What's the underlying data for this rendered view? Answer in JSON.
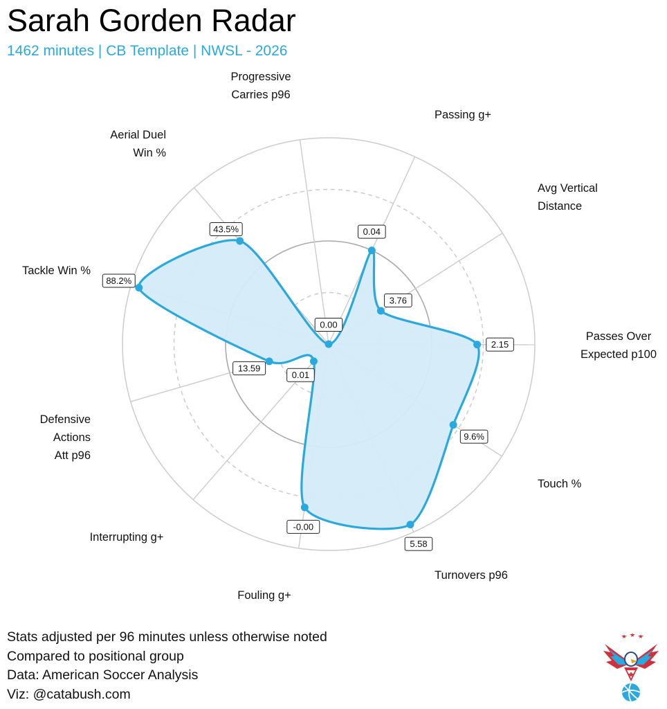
{
  "header": {
    "title": "Sarah Gorden Radar",
    "subtitle": "1462 minutes | CB Template | NWSL - 2026"
  },
  "colors": {
    "accent": "#2aa9df",
    "fill": "#d4ebf8",
    "grid": "#cccccc",
    "ring_mid": "#aaaaaa"
  },
  "chart_data": {
    "type": "radar",
    "categories": [
      "Progressive Carries p96",
      "Passing g+",
      "Avg Vertical Distance",
      "Passes Over Expected p100",
      "Touch %",
      "Turnovers p96",
      "Fouling g+",
      "Interrupting g+",
      "Defensive Actions Att p96",
      "Tackle Win %",
      "Aerial Duel Win %"
    ],
    "label_lines": [
      [
        "Progressive",
        "Carries p96"
      ],
      [
        "Passing g+"
      ],
      [
        "Avg Vertical",
        "Distance"
      ],
      [
        "Passes Over",
        "Expected p100"
      ],
      [
        "Touch %"
      ],
      [
        "Turnovers p96"
      ],
      [
        "Fouling g+"
      ],
      [
        "Interrupting g+"
      ],
      [
        "Defensive",
        "Actions",
        "Att p96"
      ],
      [
        "Tackle Win %"
      ],
      [
        "Aerial Duel",
        "Win %"
      ]
    ],
    "value_labels": [
      "0.00",
      "0.04",
      "3.76",
      "2.15",
      "9.6%",
      "5.58",
      "-0.00",
      "0.01",
      "13.59",
      "88.2%",
      "43.5%"
    ],
    "percentiles": [
      0,
      50,
      30,
      72,
      72,
      96,
      80,
      11,
      30,
      96,
      66
    ],
    "rings": [
      25,
      50,
      75,
      100
    ],
    "rlim": [
      0,
      100
    ],
    "grid": true
  },
  "footer": {
    "lines": [
      "Stats adjusted per 96 minutes unless otherwise noted",
      "Compared to positional group",
      "Data: American Soccer Analysis",
      "Viz: @catabush.com"
    ]
  },
  "logo": {
    "icon": "eagle-soccer-logo-icon"
  }
}
